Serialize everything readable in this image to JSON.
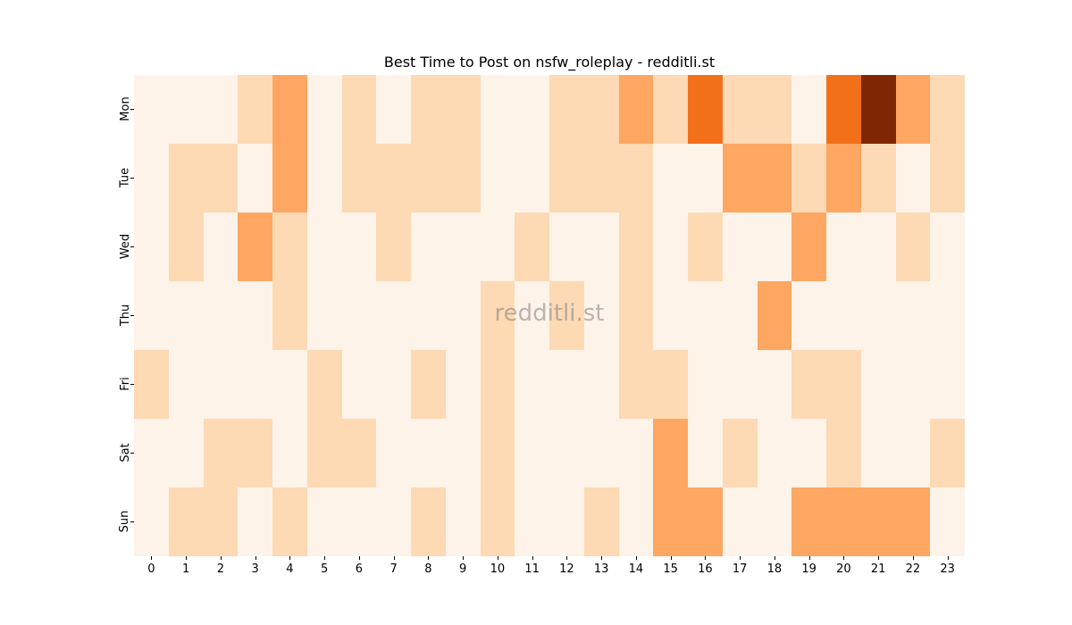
{
  "chart_data": {
    "type": "heatmap",
    "title": "Best Time to Post on nsfw_roleplay - redditli.st",
    "xlabel": "",
    "ylabel": "",
    "x": [
      "0",
      "1",
      "2",
      "3",
      "4",
      "5",
      "6",
      "7",
      "8",
      "9",
      "10",
      "11",
      "12",
      "13",
      "14",
      "15",
      "16",
      "17",
      "18",
      "19",
      "20",
      "21",
      "22",
      "23"
    ],
    "y": [
      "Mon",
      "Tue",
      "Wed",
      "Thu",
      "Fri",
      "Sat",
      "Sun"
    ],
    "colormap": "Oranges",
    "levels": [
      "#fef3e8",
      "#fdd9b4",
      "#fda762",
      "#f3701b",
      "#7f2704"
    ],
    "values": [
      [
        0,
        0,
        0,
        1,
        2,
        0,
        1,
        0,
        1,
        1,
        0,
        0,
        1,
        1,
        2,
        1,
        3,
        1,
        1,
        0,
        3,
        4,
        2,
        1
      ],
      [
        0,
        1,
        1,
        0,
        2,
        0,
        1,
        1,
        1,
        1,
        0,
        0,
        1,
        1,
        1,
        0,
        0,
        2,
        2,
        1,
        2,
        1,
        0,
        1
      ],
      [
        0,
        1,
        0,
        2,
        1,
        0,
        0,
        1,
        0,
        0,
        0,
        1,
        0,
        0,
        1,
        0,
        1,
        0,
        0,
        2,
        0,
        0,
        1,
        0
      ],
      [
        0,
        0,
        0,
        0,
        1,
        0,
        0,
        0,
        0,
        0,
        1,
        0,
        1,
        0,
        1,
        0,
        0,
        0,
        2,
        0,
        0,
        0,
        0,
        0
      ],
      [
        1,
        0,
        0,
        0,
        0,
        1,
        0,
        0,
        1,
        0,
        1,
        0,
        0,
        0,
        1,
        1,
        0,
        0,
        0,
        1,
        1,
        0,
        0,
        0
      ],
      [
        0,
        0,
        1,
        1,
        0,
        1,
        1,
        0,
        0,
        0,
        1,
        0,
        0,
        0,
        0,
        2,
        0,
        1,
        0,
        0,
        1,
        0,
        0,
        1
      ],
      [
        0,
        1,
        1,
        0,
        1,
        0,
        0,
        0,
        1,
        0,
        1,
        0,
        0,
        1,
        0,
        2,
        2,
        0,
        0,
        2,
        2,
        2,
        2,
        0
      ]
    ],
    "grid": false,
    "legend": "none"
  },
  "watermark": "redditli.st"
}
